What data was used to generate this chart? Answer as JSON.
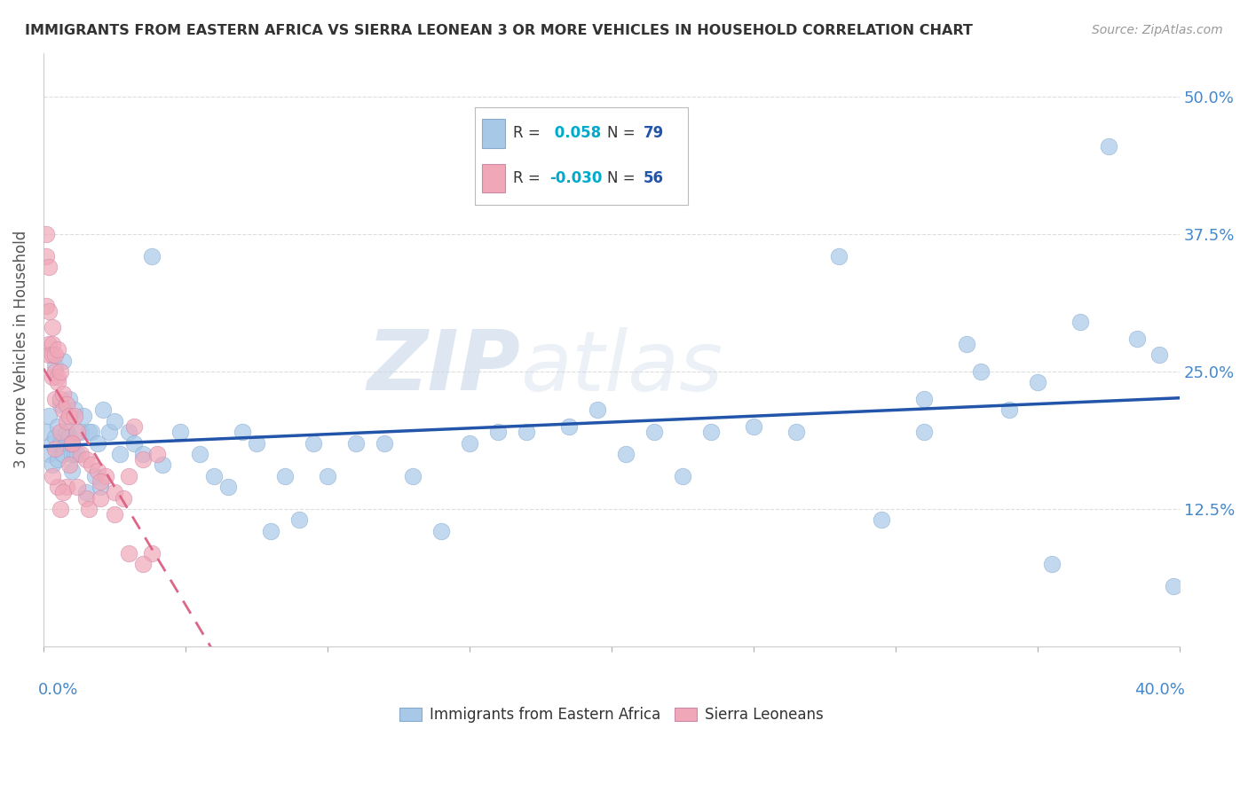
{
  "title": "IMMIGRANTS FROM EASTERN AFRICA VS SIERRA LEONEAN 3 OR MORE VEHICLES IN HOUSEHOLD CORRELATION CHART",
  "source": "Source: ZipAtlas.com",
  "ylabel": "3 or more Vehicles in Household",
  "yticks": [
    0.0,
    0.125,
    0.25,
    0.375,
    0.5
  ],
  "ytick_labels": [
    "",
    "12.5%",
    "25.0%",
    "37.5%",
    "50.0%"
  ],
  "xlim": [
    0.0,
    0.4
  ],
  "ylim": [
    0.0,
    0.54
  ],
  "blue_color": "#A8C8E8",
  "pink_color": "#F0A8B8",
  "blue_line_color": "#2255AA",
  "pink_line_color": "#DD6688",
  "watermark_zip": "ZIP",
  "watermark_atlas": "atlas",
  "blue_x": [
    0.001,
    0.002,
    0.002,
    0.003,
    0.003,
    0.004,
    0.004,
    0.005,
    0.005,
    0.006,
    0.006,
    0.007,
    0.007,
    0.008,
    0.008,
    0.009,
    0.009,
    0.01,
    0.01,
    0.011,
    0.011,
    0.012,
    0.013,
    0.014,
    0.015,
    0.016,
    0.017,
    0.018,
    0.019,
    0.02,
    0.021,
    0.023,
    0.025,
    0.027,
    0.03,
    0.032,
    0.035,
    0.038,
    0.042,
    0.048,
    0.055,
    0.06,
    0.065,
    0.07,
    0.075,
    0.08,
    0.085,
    0.09,
    0.095,
    0.1,
    0.11,
    0.12,
    0.13,
    0.14,
    0.15,
    0.16,
    0.17,
    0.185,
    0.195,
    0.205,
    0.215,
    0.225,
    0.235,
    0.25,
    0.265,
    0.28,
    0.295,
    0.31,
    0.325,
    0.34,
    0.355,
    0.365,
    0.375,
    0.385,
    0.393,
    0.398,
    0.31,
    0.33,
    0.35
  ],
  "blue_y": [
    0.195,
    0.21,
    0.175,
    0.185,
    0.165,
    0.19,
    0.255,
    0.2,
    0.17,
    0.185,
    0.22,
    0.175,
    0.26,
    0.195,
    0.185,
    0.19,
    0.225,
    0.175,
    0.16,
    0.215,
    0.175,
    0.175,
    0.195,
    0.21,
    0.14,
    0.195,
    0.195,
    0.155,
    0.185,
    0.145,
    0.215,
    0.195,
    0.205,
    0.175,
    0.195,
    0.185,
    0.175,
    0.355,
    0.165,
    0.195,
    0.175,
    0.155,
    0.145,
    0.195,
    0.185,
    0.105,
    0.155,
    0.115,
    0.185,
    0.155,
    0.185,
    0.185,
    0.155,
    0.105,
    0.185,
    0.195,
    0.195,
    0.2,
    0.215,
    0.175,
    0.195,
    0.155,
    0.195,
    0.2,
    0.195,
    0.355,
    0.115,
    0.195,
    0.275,
    0.215,
    0.075,
    0.295,
    0.455,
    0.28,
    0.265,
    0.055,
    0.225,
    0.25,
    0.24
  ],
  "pink_x": [
    0.001,
    0.001,
    0.001,
    0.002,
    0.002,
    0.002,
    0.002,
    0.003,
    0.003,
    0.003,
    0.003,
    0.004,
    0.004,
    0.004,
    0.005,
    0.005,
    0.005,
    0.006,
    0.006,
    0.006,
    0.007,
    0.007,
    0.008,
    0.008,
    0.009,
    0.01,
    0.011,
    0.012,
    0.013,
    0.015,
    0.017,
    0.019,
    0.022,
    0.025,
    0.028,
    0.032,
    0.035,
    0.038,
    0.04,
    0.03,
    0.02,
    0.015,
    0.01,
    0.008,
    0.006,
    0.005,
    0.003,
    0.004,
    0.007,
    0.009,
    0.012,
    0.016,
    0.02,
    0.025,
    0.03,
    0.035
  ],
  "pink_y": [
    0.375,
    0.355,
    0.31,
    0.275,
    0.305,
    0.265,
    0.345,
    0.29,
    0.275,
    0.265,
    0.245,
    0.265,
    0.25,
    0.225,
    0.245,
    0.24,
    0.27,
    0.25,
    0.225,
    0.195,
    0.215,
    0.23,
    0.22,
    0.205,
    0.21,
    0.185,
    0.21,
    0.195,
    0.175,
    0.17,
    0.165,
    0.16,
    0.155,
    0.14,
    0.135,
    0.2,
    0.17,
    0.085,
    0.175,
    0.155,
    0.15,
    0.135,
    0.185,
    0.145,
    0.125,
    0.145,
    0.155,
    0.18,
    0.14,
    0.165,
    0.145,
    0.125,
    0.135,
    0.12,
    0.085,
    0.075
  ]
}
